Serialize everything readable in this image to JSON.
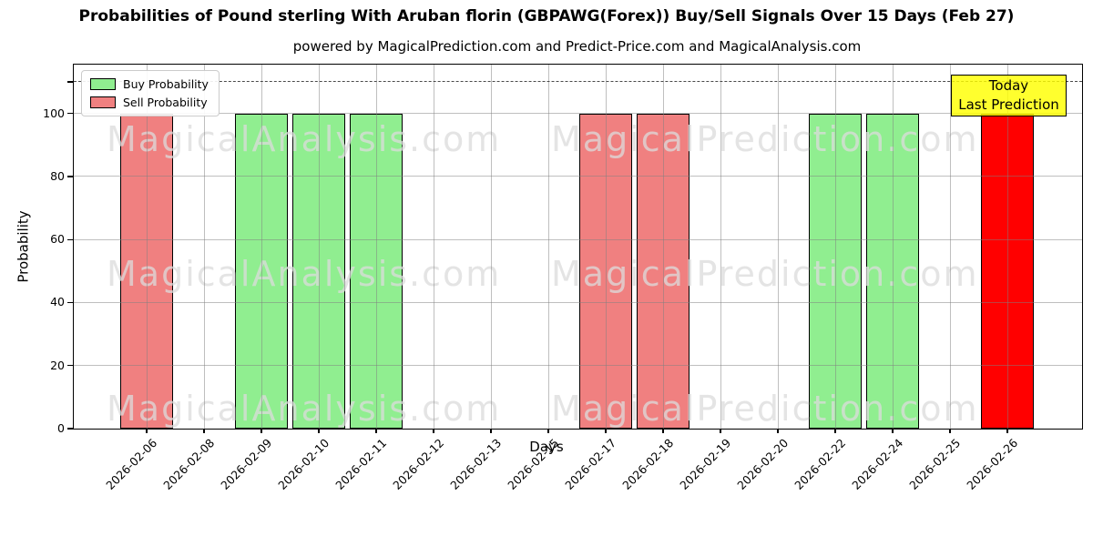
{
  "chart_data": {
    "type": "bar",
    "title": "Probabilities of Pound sterling With Aruban florin (GBPAWG(Forex)) Buy/Sell Signals Over 15 Days (Feb 27)",
    "subtitle": "powered by MagicalPrediction.com and Predict-Price.com and MagicalAnalysis.com",
    "xlabel": "Days",
    "ylabel": "Probability",
    "ylim": [
      0,
      115.5
    ],
    "yticks": [
      0,
      20,
      40,
      60,
      80,
      100
    ],
    "grid": true,
    "legend_position": "upper left",
    "categories": [
      "2026-02-06",
      "2026-02-08",
      "2026-02-09",
      "2026-02-10",
      "2026-02-11",
      "2026-02-12",
      "2026-02-13",
      "2026-02-15",
      "2026-02-17",
      "2026-02-18",
      "2026-02-19",
      "2026-02-20",
      "2026-02-22",
      "2026-02-24",
      "2026-02-25",
      "2026-02-26"
    ],
    "series": [
      {
        "name": "Buy Probability",
        "color": "#90ee90",
        "values": [
          0,
          0,
          100,
          100,
          100,
          0,
          0,
          0,
          0,
          0,
          0,
          0,
          100,
          100,
          0,
          0
        ]
      },
      {
        "name": "Sell Probability",
        "color": "#f08080",
        "values": [
          100,
          0,
          0,
          0,
          0,
          0,
          0,
          0,
          100,
          100,
          0,
          0,
          0,
          0,
          0,
          0
        ]
      },
      {
        "name": "Today Last Prediction",
        "color": "#ff0000",
        "values": [
          0,
          0,
          0,
          0,
          0,
          0,
          0,
          0,
          0,
          0,
          0,
          0,
          0,
          0,
          0,
          100
        ]
      }
    ],
    "threshold_line": {
      "value": 110,
      "style": "dashed",
      "color": "#4a4a4a"
    }
  },
  "legend": {
    "items": [
      {
        "label": "Buy Probability",
        "color": "#90ee90"
      },
      {
        "label": "Sell Probability",
        "color": "#f08080"
      }
    ]
  },
  "annotation_box": {
    "lines": [
      "Today",
      "Last Prediction"
    ],
    "bg_color": "#ffff00"
  },
  "watermarks": {
    "left_text": "MagicalAnalysis.com",
    "right_text": "MagicalPrediction.com",
    "rows": 3
  }
}
